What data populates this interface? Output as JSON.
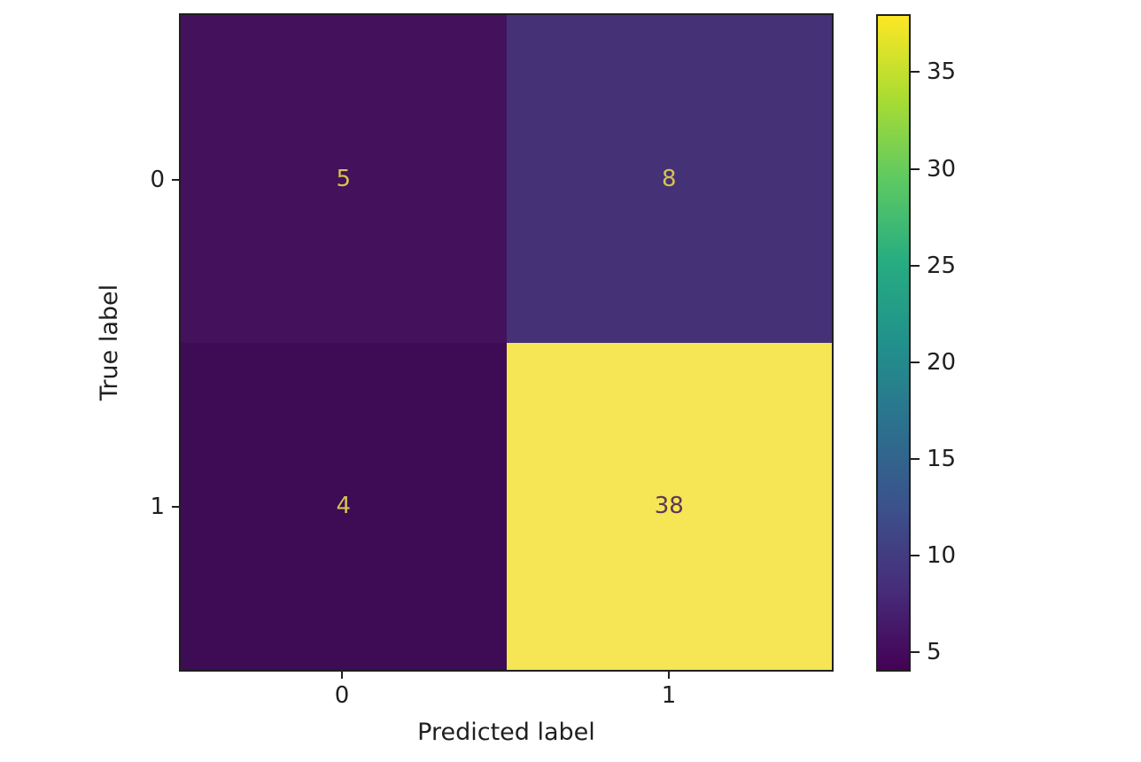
{
  "chart_data": {
    "type": "heatmap",
    "title": "",
    "xlabel": "Predicted label",
    "ylabel": "True label",
    "x_ticklabels": [
      "0",
      "1"
    ],
    "y_ticklabels": [
      "0",
      "1"
    ],
    "matrix": [
      [
        5,
        8
      ],
      [
        4,
        38
      ]
    ],
    "vmin": 4,
    "vmax": 38,
    "colormap": "viridis",
    "grid": false,
    "legend_position": "right-colorbar",
    "cells": [
      {
        "row": 0,
        "col": 0,
        "value": "5",
        "bg": "#44115c",
        "fg": "#d5c251"
      },
      {
        "row": 0,
        "col": 1,
        "value": "8",
        "bg": "#453176",
        "fg": "#d5c251"
      },
      {
        "row": 1,
        "col": 0,
        "value": "4",
        "bg": "#3d0c55",
        "fg": "#d5c251"
      },
      {
        "row": 1,
        "col": 1,
        "value": "38",
        "bg": "#f6e554",
        "fg": "#5a3a58"
      }
    ],
    "colorbar": {
      "ticks": [
        5,
        10,
        15,
        20,
        25,
        30,
        35
      ],
      "gradient_stops": [
        "#440154",
        "#472d7b",
        "#3b528b",
        "#2c718e",
        "#21918c",
        "#27ad81",
        "#5ec962",
        "#aadc32",
        "#fde725"
      ]
    }
  },
  "colors": {
    "axis_text": "#1f1f1f",
    "axis_line": "#1f1f1f",
    "background": "#ffffff"
  }
}
